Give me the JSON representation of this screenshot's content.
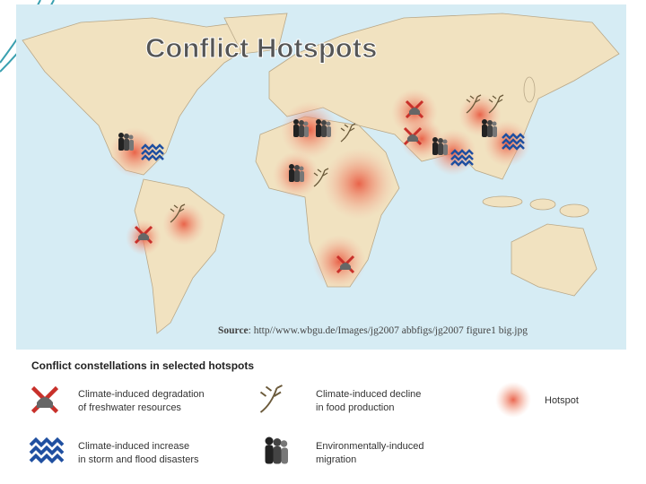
{
  "title": "Conflict Hotspots",
  "source": {
    "label": "Source",
    "text": ": http//www.wbgu.de/Images/jg2007 abbfigs/jg2007 figure1 big.jpg"
  },
  "legend": {
    "title": "Conflict constellations in selected hotspots",
    "items": [
      {
        "lines": [
          "Climate-induced degradation",
          "of freshwater resources"
        ]
      },
      {
        "lines": [
          "Climate-induced decline",
          "in food production"
        ]
      },
      {
        "lines": [
          "Hotspot"
        ]
      },
      {
        "lines": [
          "Climate-induced increase",
          "in storm and flood disasters"
        ]
      },
      {
        "lines": [
          "Environmentally-induced",
          "migration"
        ]
      }
    ]
  }
}
